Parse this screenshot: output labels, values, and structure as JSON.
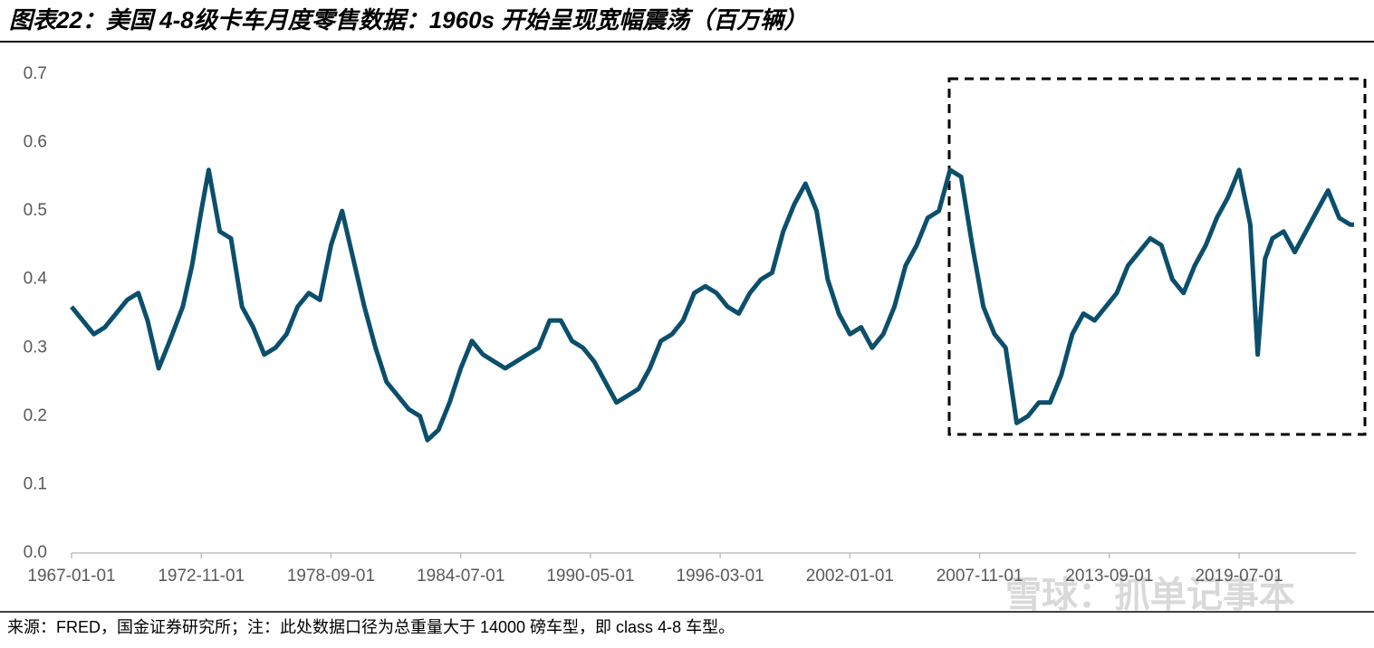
{
  "chart_data": {
    "type": "line",
    "title": "图表22：美国 4-8级卡车月度零售数据：1960s 开始呈现宽幅震荡（百万辆）",
    "source": "来源：FRED，国金证券研究所；注：此处数据口径为总重量大于 14000 磅车型，即 class 4-8 车型。",
    "watermark": "雪球：抓单记事本",
    "x": [
      "1967-01-01",
      "1967-07-01",
      "1968-01-01",
      "1968-07-01",
      "1969-01-01",
      "1969-07-01",
      "1970-01-01",
      "1970-06-01",
      "1970-12-01",
      "1971-06-01",
      "1972-01-01",
      "1972-06-01",
      "1972-11-01",
      "1973-03-01",
      "1973-09-01",
      "1974-03-01",
      "1974-09-01",
      "1975-03-01",
      "1975-09-01",
      "1976-03-01",
      "1976-09-01",
      "1977-03-01",
      "1977-09-01",
      "1978-03-01",
      "1978-09-01",
      "1979-03-01",
      "1979-09-01",
      "1980-03-01",
      "1980-09-01",
      "1981-03-01",
      "1981-09-01",
      "1982-03-01",
      "1982-09-01",
      "1983-01-01",
      "1983-07-01",
      "1984-01-01",
      "1984-07-01",
      "1985-01-01",
      "1985-07-01",
      "1986-01-01",
      "1986-07-01",
      "1987-01-01",
      "1987-07-01",
      "1988-01-01",
      "1988-07-01",
      "1989-01-01",
      "1989-07-01",
      "1990-01-01",
      "1990-07-01",
      "1991-01-01",
      "1991-07-01",
      "1992-01-01",
      "1992-07-01",
      "1993-01-01",
      "1993-07-01",
      "1994-01-01",
      "1994-07-01",
      "1995-01-01",
      "1995-07-01",
      "1996-01-01",
      "1996-07-01",
      "1997-01-01",
      "1997-07-01",
      "1998-01-01",
      "1998-07-01",
      "1999-01-01",
      "1999-07-01",
      "2000-01-01",
      "2000-07-01",
      "2001-01-01",
      "2001-07-01",
      "2002-01-01",
      "2002-07-01",
      "2003-01-01",
      "2003-07-01",
      "2004-01-01",
      "2004-07-01",
      "2005-01-01",
      "2005-07-01",
      "2006-01-01",
      "2006-07-01",
      "2007-01-01",
      "2007-07-01",
      "2008-01-01",
      "2008-07-01",
      "2009-01-01",
      "2009-07-01",
      "2010-01-01",
      "2010-07-01",
      "2011-01-01",
      "2011-07-01",
      "2012-01-01",
      "2012-07-01",
      "2013-01-01",
      "2013-07-01",
      "2014-01-01",
      "2014-07-01",
      "2015-01-01",
      "2015-07-01",
      "2016-01-01",
      "2016-07-01",
      "2017-01-01",
      "2017-07-01",
      "2018-01-01",
      "2018-07-01",
      "2019-01-01",
      "2019-07-01",
      "2020-01-01",
      "2020-05-01",
      "2020-09-01",
      "2021-01-01",
      "2021-07-01",
      "2022-01-01",
      "2022-07-01",
      "2023-01-01",
      "2023-07-01",
      "2024-01-01",
      "2024-07-01",
      "2024-09-01"
    ],
    "series": [
      {
        "color": "#0b4f6c",
        "values": [
          0.36,
          0.34,
          0.32,
          0.33,
          0.35,
          0.37,
          0.38,
          0.34,
          0.27,
          0.31,
          0.36,
          0.42,
          0.5,
          0.56,
          0.47,
          0.46,
          0.36,
          0.33,
          0.29,
          0.3,
          0.32,
          0.36,
          0.38,
          0.37,
          0.45,
          0.5,
          0.43,
          0.36,
          0.3,
          0.25,
          0.23,
          0.21,
          0.2,
          0.165,
          0.18,
          0.22,
          0.27,
          0.31,
          0.29,
          0.28,
          0.27,
          0.28,
          0.29,
          0.3,
          0.34,
          0.34,
          0.31,
          0.3,
          0.28,
          0.25,
          0.22,
          0.23,
          0.24,
          0.27,
          0.31,
          0.32,
          0.34,
          0.38,
          0.39,
          0.38,
          0.36,
          0.35,
          0.38,
          0.4,
          0.41,
          0.47,
          0.51,
          0.54,
          0.5,
          0.4,
          0.35,
          0.32,
          0.33,
          0.3,
          0.32,
          0.36,
          0.42,
          0.45,
          0.49,
          0.5,
          0.56,
          0.55,
          0.45,
          0.36,
          0.32,
          0.3,
          0.19,
          0.2,
          0.22,
          0.22,
          0.26,
          0.32,
          0.35,
          0.34,
          0.36,
          0.38,
          0.42,
          0.44,
          0.46,
          0.45,
          0.4,
          0.38,
          0.42,
          0.45,
          0.49,
          0.52,
          0.56,
          0.48,
          0.29,
          0.43,
          0.46,
          0.47,
          0.44,
          0.47,
          0.5,
          0.53,
          0.49,
          0.48,
          0.48
        ]
      }
    ],
    "xlim": [
      "1967-01-01",
      "2024-10-01"
    ],
    "xticks": [
      "1967-01-01",
      "1972-11-01",
      "1978-09-01",
      "1984-07-01",
      "1990-05-01",
      "1996-03-01",
      "2002-01-01",
      "2007-11-01",
      "2013-09-01",
      "2019-07-01"
    ],
    "ylim": [
      0,
      0.7
    ],
    "yticks": [
      {
        "value": 0,
        "label": "0.0"
      },
      0.1,
      0.2,
      0.3,
      0.4,
      0.5,
      0.6,
      0.7
    ],
    "grid": false
  }
}
